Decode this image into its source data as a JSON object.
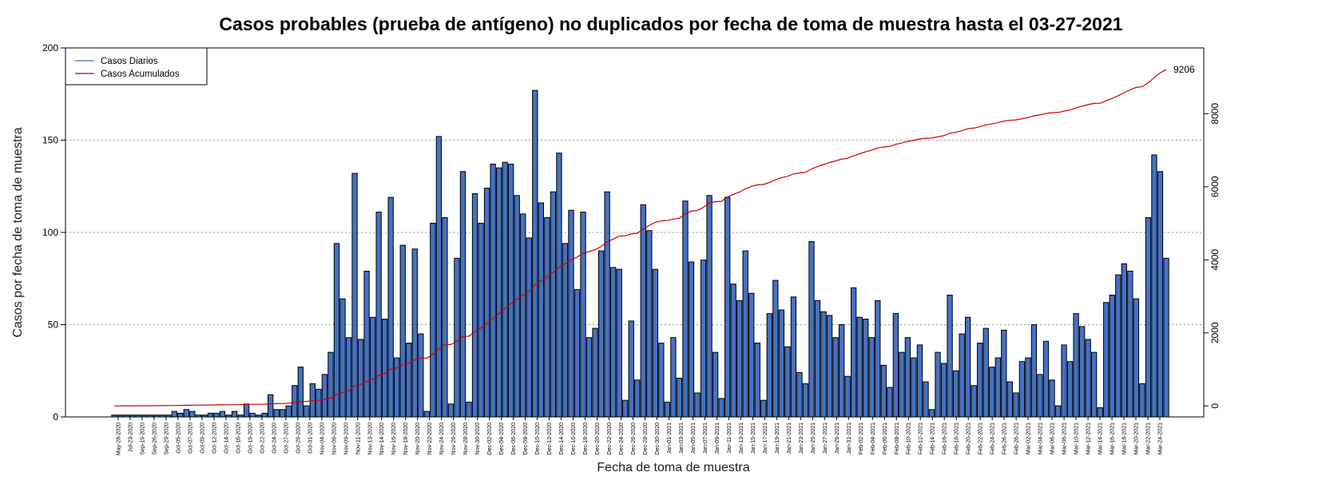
{
  "chart_data": {
    "type": "bar",
    "title": "Casos probables (prueba de antígeno) no duplicados por fecha de toma de muestra hasta el 03-27-2021",
    "xlabel": "Fecha de toma de muestra",
    "ylabel": "Casos por fecha de toma de muestra",
    "ylim": [
      0,
      200
    ],
    "y_ticks": [
      "0",
      "50",
      "100",
      "150",
      "200"
    ],
    "y2lim": [
      -300,
      9800
    ],
    "y2_ticks": [
      "0",
      "2000",
      "4000",
      "6000",
      "8000"
    ],
    "grid": "horizontal dotted",
    "legend_position": "top-left",
    "colors": {
      "bars": "#4472C4",
      "bar_border": "#000000",
      "cumulative": "#CC0000",
      "legend_daily": "#4472C4"
    },
    "x_tick_labels": [
      "May-28-2020",
      "Jul-23-2020",
      "Sep-19-2020",
      "Sep-26-2020",
      "Sep-29-2020",
      "Oct-05-2020",
      "Oct-07-2020",
      "Oct-09-2020",
      "Oct-12-2020",
      "Oct-14-2020",
      "Oct-16-2020",
      "Oct-19-2020",
      "Oct-22-2020",
      "Oct-24-2020",
      "Oct-27-2020",
      "Oct-29-2020",
      "Oct-31-2020",
      "Nov-04-2020",
      "Nov-06-2020",
      "Nov-09-2020",
      "Nov-11-2020",
      "Nov-13-2020",
      "Nov-14-2020",
      "Nov-16-2020",
      "Nov-18-2020",
      "Nov-20-2020",
      "Nov-22-2020",
      "Nov-24-2020",
      "Nov-26-2020",
      "Nov-28-2020",
      "Nov-30-2020",
      "Dec-02-2020",
      "Dec-04-2020",
      "Dec-06-2020",
      "Dec-08-2020",
      "Dec-10-2020",
      "Dec-12-2020",
      "Dec-14-2020",
      "Dec-16-2020",
      "Dec-18-2020",
      "Dec-20-2020",
      "Dec-22-2020",
      "Dec-24-2020",
      "Dec-26-2020",
      "Dec-28-2020",
      "Dec-30-2020",
      "Jan-01-2021",
      "Jan-03-2021",
      "Jan-05-2021",
      "Jan-07-2021",
      "Jan-09-2021",
      "Jan-11-2021",
      "Jan-13-2021",
      "Jan-15-2021",
      "Jan-17-2021",
      "Jan-19-2021",
      "Jan-21-2021",
      "Jan-23-2021",
      "Jan-25-2021",
      "Jan-27-2021",
      "Jan-29-2021",
      "Jan-31-2021",
      "Feb-02-2021",
      "Feb-04-2021",
      "Feb-06-2021",
      "Feb-08-2021",
      "Feb-10-2021",
      "Feb-12-2021",
      "Feb-14-2021",
      "Feb-16-2021",
      "Feb-18-2021",
      "Feb-20-2021",
      "Feb-22-2021",
      "Feb-24-2021",
      "Feb-26-2021",
      "Feb-28-2021",
      "Mar-02-2021",
      "Mar-04-2021",
      "Mar-06-2021",
      "Mar-08-2021",
      "Mar-10-2021",
      "Mar-12-2021",
      "Mar-14-2021",
      "Mar-16-2021",
      "Mar-18-2021",
      "Mar-20-2021",
      "Mar-22-2021",
      "Mar-24-2021"
    ],
    "values": [
      1,
      1,
      1,
      1,
      1,
      1,
      1,
      1,
      1,
      1,
      3,
      2,
      4,
      3,
      1,
      1,
      2,
      2,
      3,
      1,
      3,
      1,
      7,
      2,
      1,
      2,
      12,
      4,
      4,
      6,
      17,
      27,
      6,
      18,
      15,
      23,
      35,
      94,
      64,
      43,
      132,
      42,
      79,
      54,
      111,
      53,
      119,
      32,
      93,
      40,
      91,
      45,
      3,
      105,
      152,
      108,
      7,
      86,
      133,
      8,
      121,
      105,
      124,
      137,
      135,
      138,
      137,
      120,
      110,
      97,
      177,
      116,
      108,
      122,
      143,
      94,
      112,
      69,
      111,
      43,
      48,
      90,
      122,
      81,
      80,
      9,
      52,
      20,
      115,
      101,
      80,
      40,
      8,
      43,
      21,
      117,
      84,
      13,
      85,
      120,
      35,
      10,
      119,
      72,
      63,
      90,
      67,
      40,
      9,
      56,
      74,
      58,
      38,
      65,
      24,
      18,
      95,
      63,
      57,
      55,
      43,
      50,
      22,
      70,
      54,
      53,
      43,
      63,
      28,
      16,
      56,
      35,
      43,
      32,
      39,
      19,
      4,
      35,
      29,
      66,
      25,
      45,
      54,
      17,
      40,
      48,
      27,
      32,
      47,
      19,
      13,
      30,
      32,
      50,
      23,
      41,
      20,
      6,
      39,
      30,
      56,
      49,
      42,
      35,
      5,
      62,
      66,
      77,
      83,
      79,
      64,
      18,
      108,
      142,
      133,
      86
    ],
    "series": [
      {
        "name": "Casos Diarios"
      },
      {
        "name": "Casos Acumulados",
        "final_value": 9206
      }
    ],
    "end_label": "9206"
  }
}
